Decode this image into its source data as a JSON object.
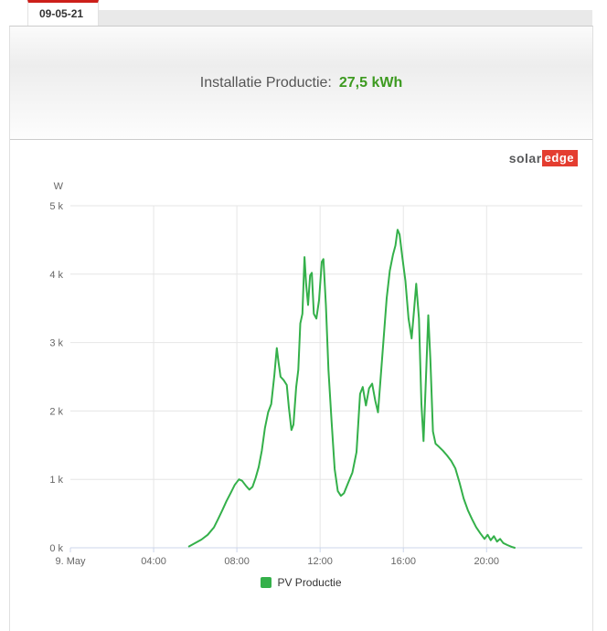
{
  "tabs": {
    "date_label": "09-05-21"
  },
  "summary": {
    "label": "Installatie Productie:",
    "value": "27,5 kWh"
  },
  "logo": {
    "part1": "solar",
    "part2": "edge"
  },
  "colors": {
    "tab_accent_red": "#cc1f1a",
    "logo_red": "#e43d30",
    "summary_value_green": "#3d9a20",
    "line_green": "#34b04a",
    "grid": "#e6e6e6",
    "axis": "#ccd6eb"
  },
  "chart_data": {
    "type": "line",
    "title": "",
    "xlabel": "",
    "ylabel": "W",
    "grid": true,
    "ylim": [
      0,
      5000
    ],
    "y_tick_values": [
      0,
      1000,
      2000,
      3000,
      4000,
      5000
    ],
    "y_tick_labels": [
      "0 k",
      "1 k",
      "2 k",
      "3 k",
      "4 k",
      "5 k"
    ],
    "xlim_hours": [
      0,
      24.6
    ],
    "x_ticks": [
      {
        "hour": 0,
        "label": "9. May"
      },
      {
        "hour": 4,
        "label": "04:00"
      },
      {
        "hour": 8,
        "label": "08:00"
      },
      {
        "hour": 12,
        "label": "12:00"
      },
      {
        "hour": 16,
        "label": "16:00"
      },
      {
        "hour": 20,
        "label": "20:00"
      }
    ],
    "legend": {
      "position": "bottom",
      "items": [
        {
          "label": "PV Productie",
          "color": "#34b04a"
        }
      ]
    },
    "series": [
      {
        "name": "PV Productie",
        "color": "#34b04a",
        "unit": "W",
        "points_hour_watts": [
          [
            5.7,
            20
          ],
          [
            6.0,
            70
          ],
          [
            6.3,
            120
          ],
          [
            6.6,
            190
          ],
          [
            6.9,
            300
          ],
          [
            7.1,
            420
          ],
          [
            7.3,
            550
          ],
          [
            7.5,
            680
          ],
          [
            7.7,
            800
          ],
          [
            7.9,
            920
          ],
          [
            8.1,
            1000
          ],
          [
            8.25,
            980
          ],
          [
            8.45,
            900
          ],
          [
            8.6,
            850
          ],
          [
            8.75,
            890
          ],
          [
            8.9,
            1020
          ],
          [
            9.05,
            1180
          ],
          [
            9.2,
            1420
          ],
          [
            9.35,
            1750
          ],
          [
            9.5,
            1980
          ],
          [
            9.65,
            2100
          ],
          [
            9.8,
            2520
          ],
          [
            9.92,
            2920
          ],
          [
            10.0,
            2720
          ],
          [
            10.1,
            2500
          ],
          [
            10.25,
            2450
          ],
          [
            10.4,
            2380
          ],
          [
            10.5,
            2050
          ],
          [
            10.62,
            1720
          ],
          [
            10.72,
            1800
          ],
          [
            10.85,
            2350
          ],
          [
            10.95,
            2600
          ],
          [
            11.05,
            3280
          ],
          [
            11.15,
            3420
          ],
          [
            11.25,
            4250
          ],
          [
            11.33,
            3850
          ],
          [
            11.42,
            3550
          ],
          [
            11.52,
            3980
          ],
          [
            11.6,
            4020
          ],
          [
            11.7,
            3420
          ],
          [
            11.82,
            3350
          ],
          [
            11.95,
            3620
          ],
          [
            12.08,
            4180
          ],
          [
            12.16,
            4220
          ],
          [
            12.28,
            3550
          ],
          [
            12.4,
            2600
          ],
          [
            12.55,
            1850
          ],
          [
            12.7,
            1150
          ],
          [
            12.85,
            830
          ],
          [
            13.0,
            760
          ],
          [
            13.15,
            800
          ],
          [
            13.35,
            950
          ],
          [
            13.55,
            1100
          ],
          [
            13.75,
            1400
          ],
          [
            13.92,
            2250
          ],
          [
            14.05,
            2350
          ],
          [
            14.2,
            2080
          ],
          [
            14.35,
            2330
          ],
          [
            14.5,
            2400
          ],
          [
            14.65,
            2150
          ],
          [
            14.78,
            1980
          ],
          [
            14.9,
            2450
          ],
          [
            15.05,
            3050
          ],
          [
            15.2,
            3650
          ],
          [
            15.35,
            4050
          ],
          [
            15.5,
            4280
          ],
          [
            15.62,
            4420
          ],
          [
            15.72,
            4650
          ],
          [
            15.82,
            4580
          ],
          [
            15.95,
            4250
          ],
          [
            16.1,
            3900
          ],
          [
            16.25,
            3350
          ],
          [
            16.4,
            3060
          ],
          [
            16.52,
            3500
          ],
          [
            16.62,
            3860
          ],
          [
            16.75,
            3350
          ],
          [
            16.87,
            2100
          ],
          [
            16.97,
            1560
          ],
          [
            17.1,
            2600
          ],
          [
            17.2,
            3400
          ],
          [
            17.3,
            2750
          ],
          [
            17.42,
            1700
          ],
          [
            17.55,
            1520
          ],
          [
            17.7,
            1480
          ],
          [
            17.9,
            1420
          ],
          [
            18.1,
            1350
          ],
          [
            18.3,
            1270
          ],
          [
            18.5,
            1160
          ],
          [
            18.7,
            950
          ],
          [
            18.9,
            720
          ],
          [
            19.1,
            550
          ],
          [
            19.3,
            420
          ],
          [
            19.5,
            300
          ],
          [
            19.7,
            210
          ],
          [
            19.9,
            130
          ],
          [
            20.05,
            190
          ],
          [
            20.2,
            110
          ],
          [
            20.35,
            170
          ],
          [
            20.5,
            90
          ],
          [
            20.65,
            130
          ],
          [
            20.8,
            70
          ],
          [
            21.0,
            40
          ],
          [
            21.2,
            15
          ],
          [
            21.35,
            0
          ]
        ]
      }
    ]
  }
}
